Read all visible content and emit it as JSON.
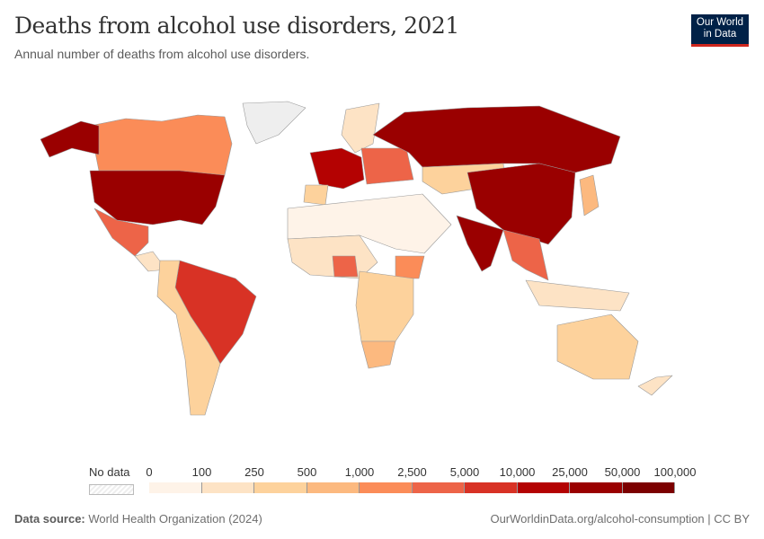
{
  "header": {
    "title": "Deaths from alcohol use disorders, 2021",
    "subtitle": "Annual number of deaths from alcohol use disorders.",
    "logo_line1": "Our World",
    "logo_line2": "in Data"
  },
  "legend": {
    "no_data_label": "No data",
    "ticks": [
      "0",
      "100",
      "250",
      "500",
      "1,000",
      "2,500",
      "5,000",
      "10,000",
      "25,000",
      "50,000",
      "100,000"
    ],
    "colors": [
      "#fef3e8",
      "#fde3c5",
      "#fdd29c",
      "#fcb97f",
      "#fb8c58",
      "#ed6448",
      "#d83225",
      "#b40202",
      "#9a0000",
      "#7c0000"
    ],
    "no_data_color": "#eeeeee"
  },
  "map": {
    "regions": [
      {
        "id": "greenland",
        "bin": null
      },
      {
        "id": "canada",
        "bin": 4
      },
      {
        "id": "alaska",
        "bin": 8
      },
      {
        "id": "united-states",
        "bin": 8
      },
      {
        "id": "mexico",
        "bin": 5
      },
      {
        "id": "central-america",
        "bin": 1
      },
      {
        "id": "brazil",
        "bin": 6
      },
      {
        "id": "rest-of-south-america",
        "bin": 2
      },
      {
        "id": "scandinavia",
        "bin": 1
      },
      {
        "id": "western-europe",
        "bin": 7
      },
      {
        "id": "iberia",
        "bin": 2
      },
      {
        "id": "eastern-europe",
        "bin": 5
      },
      {
        "id": "russia",
        "bin": 8
      },
      {
        "id": "central-asia",
        "bin": 2
      },
      {
        "id": "middle-east-north-africa",
        "bin": 0
      },
      {
        "id": "china",
        "bin": 8
      },
      {
        "id": "india",
        "bin": 8
      },
      {
        "id": "southeast-asia",
        "bin": 5
      },
      {
        "id": "indonesia",
        "bin": 1
      },
      {
        "id": "japan",
        "bin": 3
      },
      {
        "id": "west-africa",
        "bin": 1
      },
      {
        "id": "nigeria",
        "bin": 5
      },
      {
        "id": "ethiopia",
        "bin": 4
      },
      {
        "id": "central-east-africa",
        "bin": 2
      },
      {
        "id": "southern-africa",
        "bin": 3
      },
      {
        "id": "australia",
        "bin": 2
      },
      {
        "id": "new-zealand",
        "bin": 1
      }
    ]
  },
  "footer": {
    "source_label": "Data source:",
    "source": "World Health Organization (2024)",
    "url": "OurWorldinData.org/alcohol-consumption | CC BY"
  }
}
